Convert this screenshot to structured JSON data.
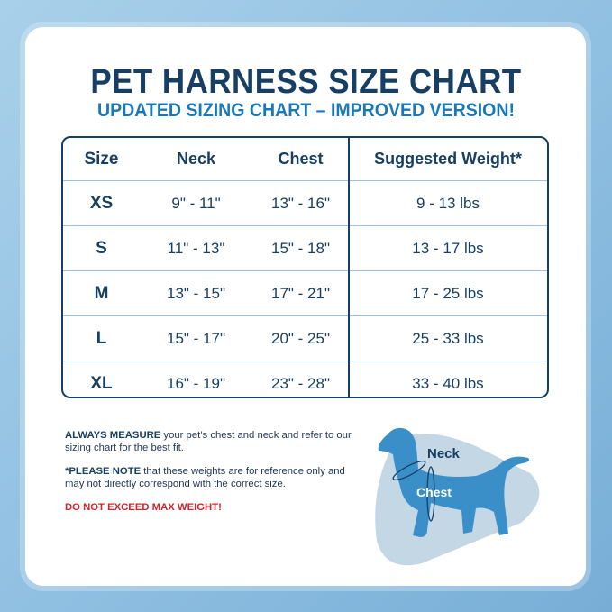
{
  "title": "PET HARNESS SIZE CHART",
  "subtitle": "UPDATED SIZING CHART – IMPROVED VERSION!",
  "table": {
    "headers": [
      "Size",
      "Neck",
      "Chest",
      "Suggested Weight*"
    ],
    "rows": [
      [
        "XS",
        "9\" - 11\"",
        "13\" - 16\"",
        "9 - 13 lbs"
      ],
      [
        "S",
        "11\" - 13\"",
        "15\" - 18\"",
        "13 - 17 lbs"
      ],
      [
        "M",
        "13\" - 15\"",
        "17\" - 21\"",
        "17 - 25  lbs"
      ],
      [
        "L",
        "15\" - 17\"",
        "20\" - 25\"",
        "25 - 33 lbs"
      ],
      [
        "XL",
        "16\" - 19\"",
        "23\" - 28\"",
        "33 - 40 lbs"
      ]
    ]
  },
  "notes": {
    "measure_bold": "ALWAYS MEASURE",
    "measure_text": " your pet’s chest and neck and refer to our sizing chart for the best fit.",
    "note_bold": "*PLEASE NOTE",
    "note_text": " that these weights are for reference only and may not directly correspond with the correct size.",
    "warning": "DO NOT EXCEED MAX WEIGHT!"
  },
  "diagram": {
    "neck_label": "Neck",
    "chest_label": "Chest"
  },
  "colors": {
    "navy": "#173f63",
    "blue": "#1a77b8",
    "dog": "#3b8fc9",
    "warning": "#d1232a"
  }
}
